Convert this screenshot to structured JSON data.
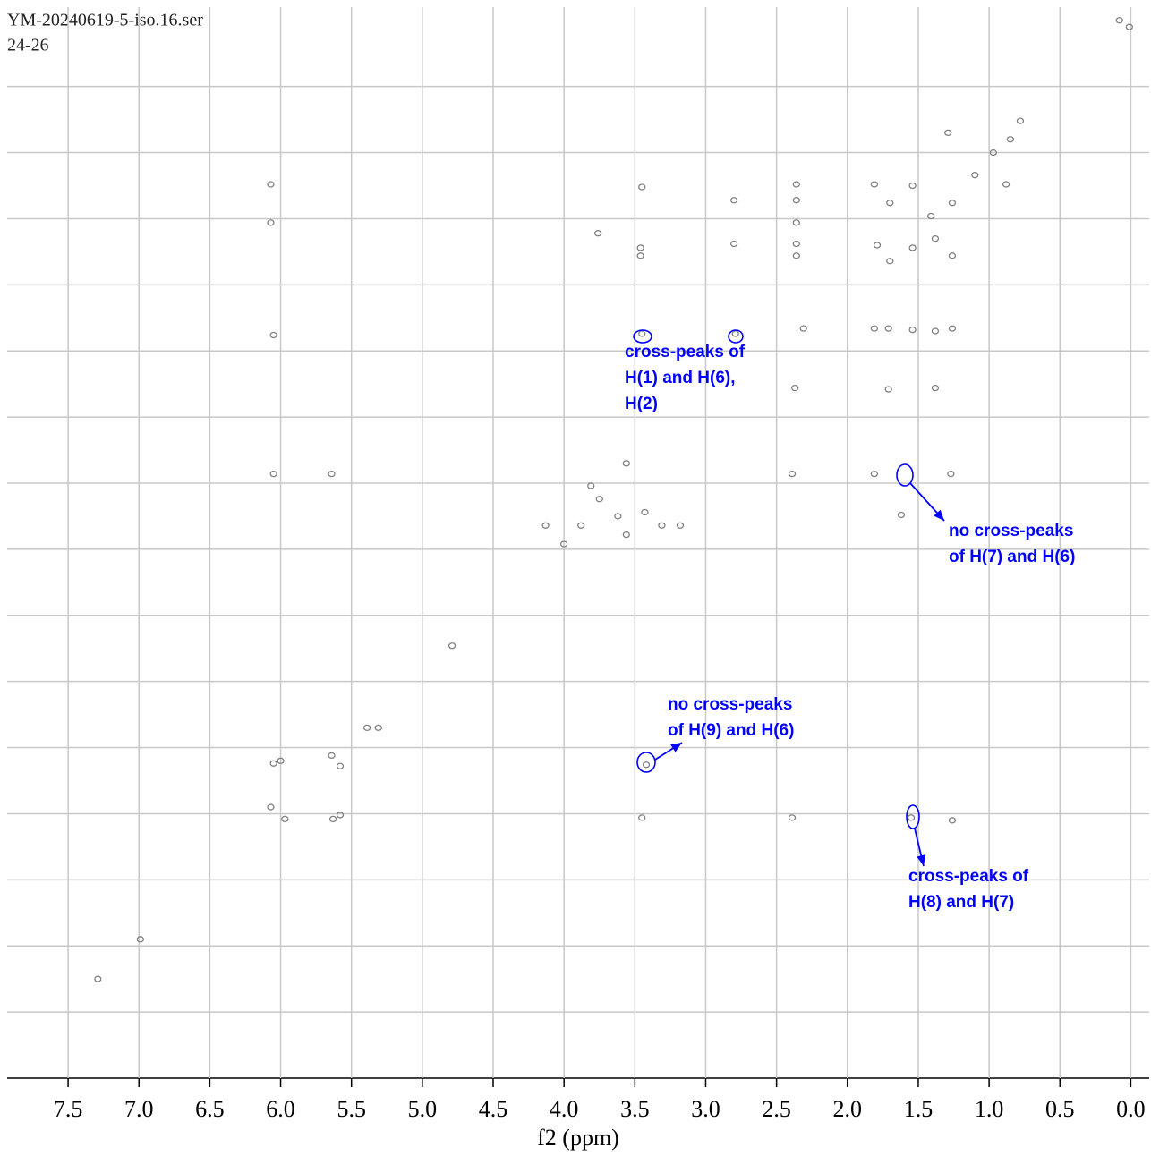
{
  "chart_data": {
    "type": "scatter",
    "header": [
      "YM-20240619-5-iso.16.ser",
      "24-26"
    ],
    "x_label": "f2 (ppm)",
    "xlim": [
      7.93,
      -0.13
    ],
    "ylim": [
      -0.1,
      8.0
    ],
    "xticks": [
      {
        "value": 7.5,
        "label": "7.5"
      },
      {
        "value": 7,
        "label": "7.0"
      },
      {
        "value": 6.5,
        "label": "6.5"
      },
      {
        "value": 6,
        "label": "6.0"
      },
      {
        "value": 5.5,
        "label": "5.5"
      },
      {
        "value": 5,
        "label": "5.0"
      },
      {
        "value": 4.5,
        "label": "4.5"
      },
      {
        "value": 4,
        "label": "4.0"
      },
      {
        "value": 3.5,
        "label": "3.5"
      },
      {
        "value": 3,
        "label": "3.0"
      },
      {
        "value": 2.5,
        "label": "2.5"
      },
      {
        "value": 2,
        "label": "2.0"
      },
      {
        "value": 1.5,
        "label": "1.5"
      },
      {
        "value": 1,
        "label": "1.0"
      },
      {
        "value": 0.5,
        "label": "0.5"
      },
      {
        "value": 0,
        "label": "0.0"
      }
    ],
    "yticks": [
      0.5,
      1,
      1.5,
      2,
      2.5,
      3,
      3.5,
      4,
      4.5,
      5,
      5.5,
      6,
      6.5,
      7,
      7.5
    ],
    "grid": true,
    "color": "#808080",
    "series": [
      {
        "x": [
          0.08,
          0.01,
          6.07,
          6.07,
          6.05,
          6.05,
          5.64,
          3.45,
          3.46,
          3.46,
          2.8,
          2.8,
          2.36,
          2.36,
          2.36,
          2.36,
          2.36,
          3.76,
          3.45,
          2.79,
          2.37,
          2.39,
          1.81,
          1.71,
          1.54,
          1.38,
          1.26,
          1.71,
          1.38,
          1.81,
          1.27,
          1.81,
          1.7,
          1.54,
          1.79,
          1.54,
          1.26,
          1.38,
          1.26,
          1.1,
          0.97,
          0.85,
          0.88,
          1.29,
          0.78,
          3.88,
          3.75,
          3.62,
          3.56,
          3.81,
          4.0,
          4.13,
          3.31,
          3.18,
          3.43,
          3.56,
          4.79,
          5.39,
          5.31,
          6.05,
          6.0,
          5.64,
          5.58,
          6.07,
          5.97,
          5.63,
          5.58,
          3.45,
          3.42,
          2.39,
          1.55,
          1.26,
          7.29,
          6.99,
          1.62,
          2.31,
          1.7,
          1.41
        ],
        "values": [
          0.0,
          0.05,
          1.24,
          1.53,
          2.38,
          3.43,
          3.43,
          1.26,
          1.72,
          1.78,
          1.36,
          1.69,
          1.24,
          1.36,
          1.53,
          1.69,
          1.78,
          1.61,
          2.37,
          2.37,
          2.78,
          3.43,
          2.33,
          2.33,
          2.34,
          2.35,
          2.33,
          2.79,
          2.78,
          3.43,
          3.43,
          1.24,
          1.38,
          1.25,
          1.7,
          1.72,
          1.78,
          1.65,
          1.38,
          1.17,
          1.0,
          0.9,
          1.24,
          0.85,
          0.76,
          3.82,
          3.62,
          3.75,
          3.89,
          3.52,
          3.96,
          3.82,
          3.82,
          3.82,
          3.72,
          3.35,
          4.73,
          5.35,
          5.35,
          5.62,
          5.6,
          5.56,
          5.64,
          5.95,
          6.04,
          6.04,
          6.01,
          6.03,
          5.63,
          6.03,
          6.03,
          6.05,
          7.25,
          6.95,
          3.74,
          2.33,
          1.82,
          1.48
        ]
      }
    ],
    "annotation_color": "#0000ff",
    "annotations": [
      {
        "lines": [
          "cross-peaks of",
          "H(1) and H(6),",
          "H(2)"
        ]
      },
      {
        "lines": [
          "no cross-peaks",
          "of H(7) and H(6)"
        ]
      },
      {
        "lines": [
          "no cross-peaks",
          "of H(9) and H(6)"
        ]
      },
      {
        "lines": [
          "cross-peaks of",
          "H(8) and H(7)"
        ]
      }
    ]
  }
}
